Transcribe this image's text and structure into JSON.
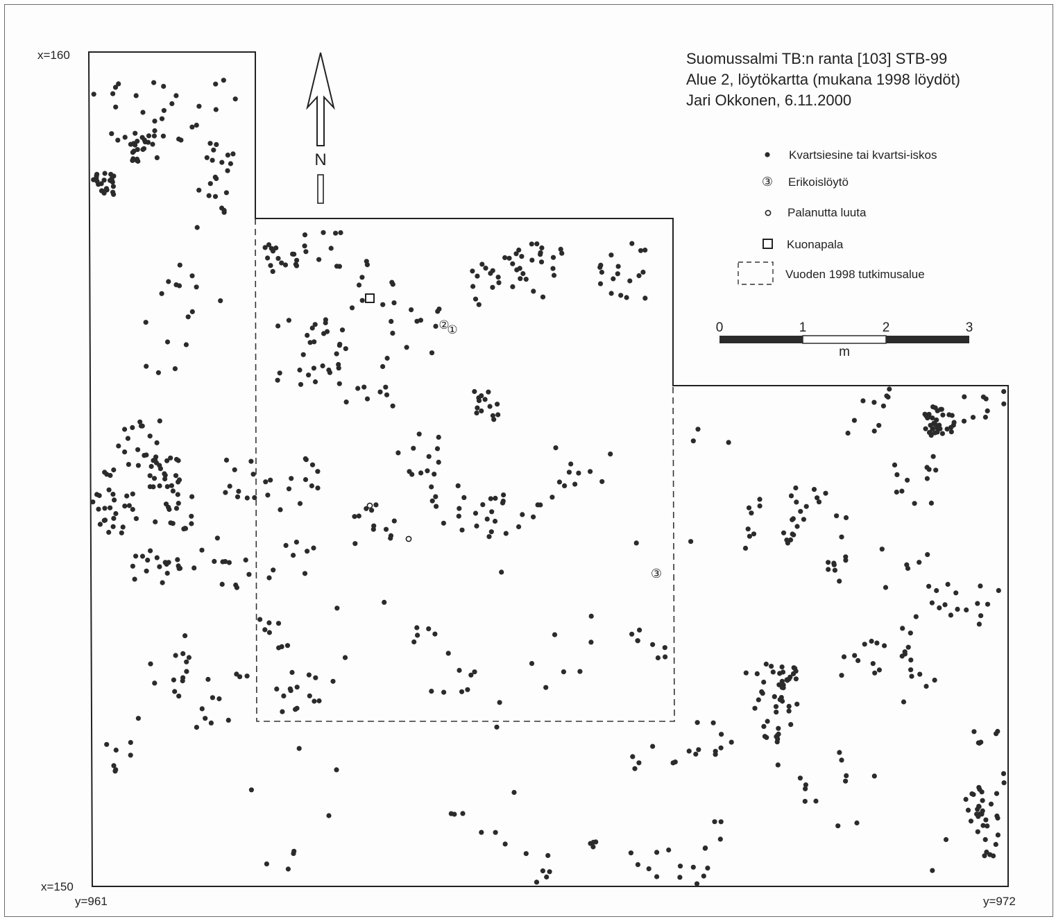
{
  "title": {
    "line1": "Suomussalmi TB:n ranta [103] STB-99",
    "line2": "Alue 2, löytökartta (mukana 1998 löydöt)",
    "line3": "Jari Okkonen, 6.11.2000"
  },
  "corners": {
    "x_top": "x=160",
    "x_bottom": "x=150",
    "y_left": "y=961",
    "y_right": "y=972"
  },
  "north_arrow": {
    "label": "N"
  },
  "legend": {
    "items": [
      {
        "symbol": "dot",
        "label": "Kvartsiesine tai kvartsi-iskos"
      },
      {
        "symbol": "circled-number",
        "label": "Erikoislöytö"
      },
      {
        "symbol": "open-circle",
        "label": "Palanutta luuta"
      },
      {
        "symbol": "square",
        "label": "Kuonapala"
      },
      {
        "symbol": "dashed-rect",
        "label": "Vuoden 1998 tutkimusalue"
      }
    ]
  },
  "scale_bar": {
    "ticks": [
      "0",
      "1",
      "2",
      "3"
    ],
    "unit": "m"
  },
  "special_finds": [
    {
      "id": "1",
      "glyph": "①"
    },
    {
      "id": "2",
      "glyph": "②"
    },
    {
      "id": "3",
      "glyph": "③"
    }
  ],
  "colors": {
    "dot": "#2b2b2b",
    "line": "#222222",
    "text": "#222222"
  }
}
